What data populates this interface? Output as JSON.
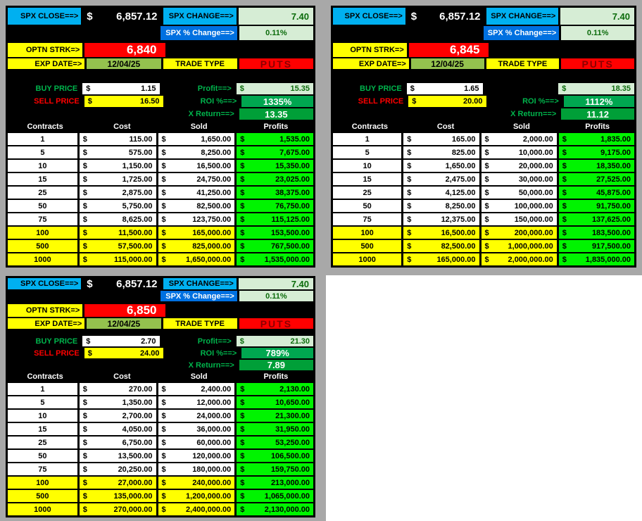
{
  "page": {
    "background_gray": "#a8a8a8",
    "empty_area_white": "#ffffff"
  },
  "colors": {
    "cyan_header": "#00b0f0",
    "blue_header": "#0070e0",
    "pale_green": "#d6edd5",
    "dark_green_text": "#0b6b0b",
    "date_green": "#94c24e",
    "roi_green": "#00a750",
    "xreturn_green": "#009f38",
    "profit_green": "#00f400",
    "highlight_yellow": "#ffff00",
    "alert_red": "#ff0000",
    "label_green": "#00b44c",
    "panel_black": "#000000"
  },
  "panels": [
    {
      "currency": "$",
      "spx_close_label": "SPX CLOSE==>",
      "spx_close_value": "6,857.12",
      "spx_change_label": "SPX CHANGE==>",
      "spx_change_value": "7.40",
      "spx_pct_label": "SPX % Change==>",
      "spx_pct_value": "0.11%",
      "optn_strk_label": "OPTN STRK=>",
      "optn_strk_value": "6,840",
      "exp_date_label": "EXP DATE=>",
      "exp_date_value": "12/04/25",
      "trade_type_label": "TRADE TYPE",
      "trade_type_value": "PUTS",
      "buy_price_label": "BUY PRICE",
      "buy_price_value": "1.15",
      "sell_price_label": "SELL PRICE",
      "sell_price_value": "16.50",
      "profit_label": "Profit==>",
      "profit_value": "15.35",
      "roi_label": "ROI %==>",
      "roi_value": "1335%",
      "xreturn_label": "X Return==>",
      "xreturn_value": "13.35",
      "col_headers": [
        "Contracts",
        "Cost",
        "Sold",
        "Profits"
      ],
      "rows": [
        {
          "contracts": "1",
          "cost": "115.00",
          "sold": "1,650.00",
          "profits": "1,535.00",
          "hl": false
        },
        {
          "contracts": "5",
          "cost": "575.00",
          "sold": "8,250.00",
          "profits": "7,675.00",
          "hl": false
        },
        {
          "contracts": "10",
          "cost": "1,150.00",
          "sold": "16,500.00",
          "profits": "15,350.00",
          "hl": false
        },
        {
          "contracts": "15",
          "cost": "1,725.00",
          "sold": "24,750.00",
          "profits": "23,025.00",
          "hl": false
        },
        {
          "contracts": "25",
          "cost": "2,875.00",
          "sold": "41,250.00",
          "profits": "38,375.00",
          "hl": false
        },
        {
          "contracts": "50",
          "cost": "5,750.00",
          "sold": "82,500.00",
          "profits": "76,750.00",
          "hl": false
        },
        {
          "contracts": "75",
          "cost": "8,625.00",
          "sold": "123,750.00",
          "profits": "115,125.00",
          "hl": false
        },
        {
          "contracts": "100",
          "cost": "11,500.00",
          "sold": "165,000.00",
          "profits": "153,500.00",
          "hl": true
        },
        {
          "contracts": "500",
          "cost": "57,500.00",
          "sold": "825,000.00",
          "profits": "767,500.00",
          "hl": true
        },
        {
          "contracts": "1000",
          "cost": "115,000.00",
          "sold": "1,650,000.00",
          "profits": "1,535,000.00",
          "hl": true
        }
      ]
    },
    {
      "currency": "$",
      "spx_close_label": "SPX CLOSE==>",
      "spx_close_value": "6,857.12",
      "spx_change_label": "SPX CHANGE==>",
      "spx_change_value": "7.40",
      "spx_pct_label": "SPX % Change==>",
      "spx_pct_value": "0.11%",
      "optn_strk_label": "OPTN STRK=>",
      "optn_strk_value": "6,845",
      "exp_date_label": "EXP DATE=>",
      "exp_date_value": "12/04/25",
      "trade_type_label": "TRADE TYPE",
      "trade_type_value": "PUTS",
      "buy_price_label": "BUY PRICE",
      "buy_price_value": "1.65",
      "sell_price_label": "SELL PRICE",
      "sell_price_value": "20.00",
      "profit_label": "",
      "profit_value": "18.35",
      "roi_label": "ROI %==>",
      "roi_value": "1112%",
      "xreturn_label": "X Return==>",
      "xreturn_value": "11.12",
      "col_headers": [
        "Contracts",
        "Cost",
        "Sold",
        "Profits"
      ],
      "rows": [
        {
          "contracts": "1",
          "cost": "165.00",
          "sold": "2,000.00",
          "profits": "1,835.00",
          "hl": false
        },
        {
          "contracts": "5",
          "cost": "825.00",
          "sold": "10,000.00",
          "profits": "9,175.00",
          "hl": false
        },
        {
          "contracts": "10",
          "cost": "1,650.00",
          "sold": "20,000.00",
          "profits": "18,350.00",
          "hl": false
        },
        {
          "contracts": "15",
          "cost": "2,475.00",
          "sold": "30,000.00",
          "profits": "27,525.00",
          "hl": false
        },
        {
          "contracts": "25",
          "cost": "4,125.00",
          "sold": "50,000.00",
          "profits": "45,875.00",
          "hl": false
        },
        {
          "contracts": "50",
          "cost": "8,250.00",
          "sold": "100,000.00",
          "profits": "91,750.00",
          "hl": false
        },
        {
          "contracts": "75",
          "cost": "12,375.00",
          "sold": "150,000.00",
          "profits": "137,625.00",
          "hl": false
        },
        {
          "contracts": "100",
          "cost": "16,500.00",
          "sold": "200,000.00",
          "profits": "183,500.00",
          "hl": true
        },
        {
          "contracts": "500",
          "cost": "82,500.00",
          "sold": "1,000,000.00",
          "profits": "917,500.00",
          "hl": true
        },
        {
          "contracts": "1000",
          "cost": "165,000.00",
          "sold": "2,000,000.00",
          "profits": "1,835,000.00",
          "hl": true
        }
      ]
    },
    {
      "currency": "$",
      "spx_close_label": "SPX CLOSE==>",
      "spx_close_value": "6,857.12",
      "spx_change_label": "SPX CHANGE==>",
      "spx_change_value": "7.40",
      "spx_pct_label": "SPX % Change==>",
      "spx_pct_value": "0.11%",
      "optn_strk_label": "OPTN STRK=>",
      "optn_strk_value": "6,850",
      "exp_date_label": "EXP DATE=>",
      "exp_date_value": "12/04/25",
      "trade_type_label": "TRADE TYPE",
      "trade_type_value": "PUTS",
      "buy_price_label": "BUY PRICE",
      "buy_price_value": "2.70",
      "sell_price_label": "SELL PRICE",
      "sell_price_value": "24.00",
      "profit_label": "Profit==>",
      "profit_value": "21.30",
      "roi_label": "ROI %==>",
      "roi_value": "789%",
      "xreturn_label": "X Return==>",
      "xreturn_value": "7.89",
      "col_headers": [
        "Contracts",
        "Cost",
        "Sold",
        "Profits"
      ],
      "rows": [
        {
          "contracts": "1",
          "cost": "270.00",
          "sold": "2,400.00",
          "profits": "2,130.00",
          "hl": false
        },
        {
          "contracts": "5",
          "cost": "1,350.00",
          "sold": "12,000.00",
          "profits": "10,650.00",
          "hl": false
        },
        {
          "contracts": "10",
          "cost": "2,700.00",
          "sold": "24,000.00",
          "profits": "21,300.00",
          "hl": false
        },
        {
          "contracts": "15",
          "cost": "4,050.00",
          "sold": "36,000.00",
          "profits": "31,950.00",
          "hl": false
        },
        {
          "contracts": "25",
          "cost": "6,750.00",
          "sold": "60,000.00",
          "profits": "53,250.00",
          "hl": false
        },
        {
          "contracts": "50",
          "cost": "13,500.00",
          "sold": "120,000.00",
          "profits": "106,500.00",
          "hl": false
        },
        {
          "contracts": "75",
          "cost": "20,250.00",
          "sold": "180,000.00",
          "profits": "159,750.00",
          "hl": false
        },
        {
          "contracts": "100",
          "cost": "27,000.00",
          "sold": "240,000.00",
          "profits": "213,000.00",
          "hl": true
        },
        {
          "contracts": "500",
          "cost": "135,000.00",
          "sold": "1,200,000.00",
          "profits": "1,065,000.00",
          "hl": true
        },
        {
          "contracts": "1000",
          "cost": "270,000.00",
          "sold": "2,400,000.00",
          "profits": "2,130,000.00",
          "hl": true
        }
      ]
    }
  ]
}
